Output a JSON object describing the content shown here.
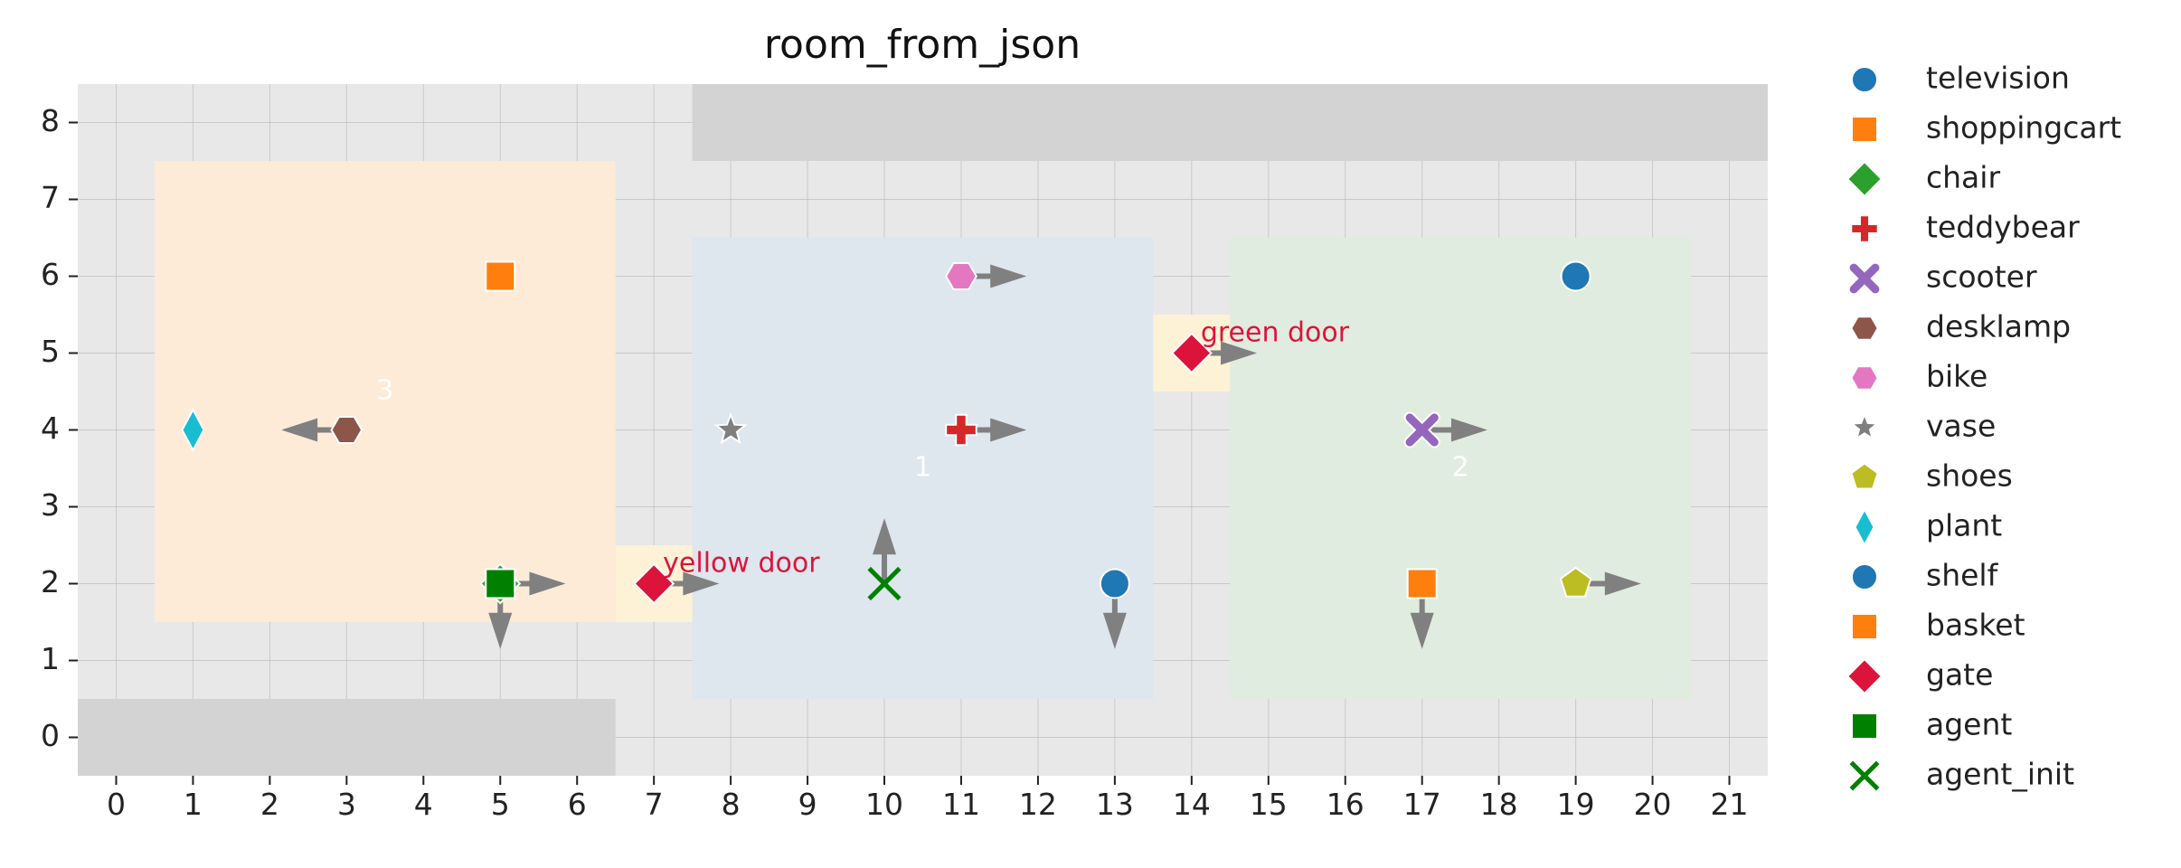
{
  "chart_data": {
    "type": "scatter",
    "title": "room_from_json",
    "xlabel": "",
    "ylabel": "",
    "xlim": [
      -0.5,
      21.5
    ],
    "ylim": [
      -0.5,
      8.5
    ],
    "xticks": [
      0,
      1,
      2,
      3,
      4,
      5,
      6,
      7,
      8,
      9,
      10,
      11,
      12,
      13,
      14,
      15,
      16,
      17,
      18,
      19,
      20,
      21
    ],
    "yticks": [
      0,
      1,
      2,
      3,
      4,
      5,
      6,
      7,
      8
    ],
    "grid": true,
    "background": "#e8e8e8",
    "legend_position": "outside-right",
    "regions": [
      {
        "kind": "wall",
        "x0": 7.5,
        "x1": 21.5,
        "y0": 7.5,
        "y1": 8.5,
        "color": "#d3d3d3"
      },
      {
        "kind": "wall",
        "x0": -0.5,
        "x1": 6.5,
        "y0": -0.5,
        "y1": 0.5,
        "color": "#d3d3d3"
      },
      {
        "kind": "room",
        "label": "3",
        "x0": 0.5,
        "x1": 6.5,
        "y0": 1.5,
        "y1": 7.5,
        "color": "#fdebd8",
        "label_x": 3.5,
        "label_y": 4.5
      },
      {
        "kind": "room",
        "label": "1",
        "x0": 7.5,
        "x1": 13.5,
        "y0": 0.5,
        "y1": 6.5,
        "color": "#dee6ee",
        "label_x": 10.5,
        "label_y": 3.5
      },
      {
        "kind": "room",
        "label": "2",
        "x0": 14.5,
        "x1": 20.5,
        "y0": 0.5,
        "y1": 6.5,
        "color": "#e0ecdf",
        "label_x": 17.5,
        "label_y": 3.5
      },
      {
        "kind": "doorway",
        "x0": 6.5,
        "x1": 7.5,
        "y0": 1.5,
        "y1": 2.5,
        "color": "#fdf2d5"
      },
      {
        "kind": "doorway",
        "x0": 13.5,
        "x1": 14.5,
        "y0": 4.5,
        "y1": 5.5,
        "color": "#fdf2d5"
      }
    ],
    "series": [
      {
        "name": "television",
        "marker": "circle",
        "color": "#1f77b4",
        "points": [
          {
            "x": 19,
            "y": 6
          }
        ]
      },
      {
        "name": "shoppingcart",
        "marker": "square",
        "color": "#ff7f0e",
        "points": [
          {
            "x": 5,
            "y": 6
          }
        ]
      },
      {
        "name": "chair",
        "marker": "diamond",
        "color": "#2ca02c",
        "points": [
          {
            "x": 5,
            "y": 2
          }
        ]
      },
      {
        "name": "teddybear",
        "marker": "plus",
        "color": "#d62728",
        "points": [
          {
            "x": 11,
            "y": 4,
            "dir": "right"
          }
        ]
      },
      {
        "name": "scooter",
        "marker": "x",
        "color": "#9467bd",
        "points": [
          {
            "x": 17,
            "y": 4,
            "dir": "right"
          }
        ]
      },
      {
        "name": "desklamp",
        "marker": "hexagon",
        "color": "#8c564b",
        "points": [
          {
            "x": 3,
            "y": 4,
            "dir": "left"
          }
        ]
      },
      {
        "name": "bike",
        "marker": "hexagon",
        "color": "#e377c2",
        "points": [
          {
            "x": 11,
            "y": 6,
            "dir": "right"
          }
        ]
      },
      {
        "name": "vase",
        "marker": "star",
        "color": "#7f7f7f",
        "points": [
          {
            "x": 8,
            "y": 4
          }
        ]
      },
      {
        "name": "shoes",
        "marker": "pentagon",
        "color": "#bcbd22",
        "points": [
          {
            "x": 19,
            "y": 2,
            "dir": "right"
          }
        ]
      },
      {
        "name": "plant",
        "marker": "thin_diamond",
        "color": "#17becf",
        "points": [
          {
            "x": 1,
            "y": 4
          }
        ]
      },
      {
        "name": "shelf",
        "marker": "circle",
        "color": "#1f77b4",
        "points": [
          {
            "x": 13,
            "y": 2,
            "dir": "down"
          }
        ]
      },
      {
        "name": "basket",
        "marker": "square",
        "color": "#ff7f0e",
        "points": [
          {
            "x": 17,
            "y": 2,
            "dir": "down"
          }
        ]
      },
      {
        "name": "gate",
        "marker": "diamond",
        "color": "#dc143c",
        "points": [
          {
            "x": 7,
            "y": 2,
            "dir": "right",
            "label": "yellow door"
          },
          {
            "x": 14,
            "y": 5,
            "dir": "right",
            "label": "green door"
          }
        ]
      },
      {
        "name": "agent",
        "marker": "square",
        "color": "#008000",
        "points": [
          {
            "x": 5,
            "y": 2,
            "dir": "right"
          },
          {
            "x": 5,
            "y": 2,
            "dir": "down"
          }
        ]
      },
      {
        "name": "agent_init",
        "marker": "x_thin",
        "color": "#008000",
        "points": [
          {
            "x": 10,
            "y": 2,
            "dir": "up"
          }
        ]
      }
    ],
    "annotation_color": "#dc143c",
    "arrow_color": "#808080"
  }
}
